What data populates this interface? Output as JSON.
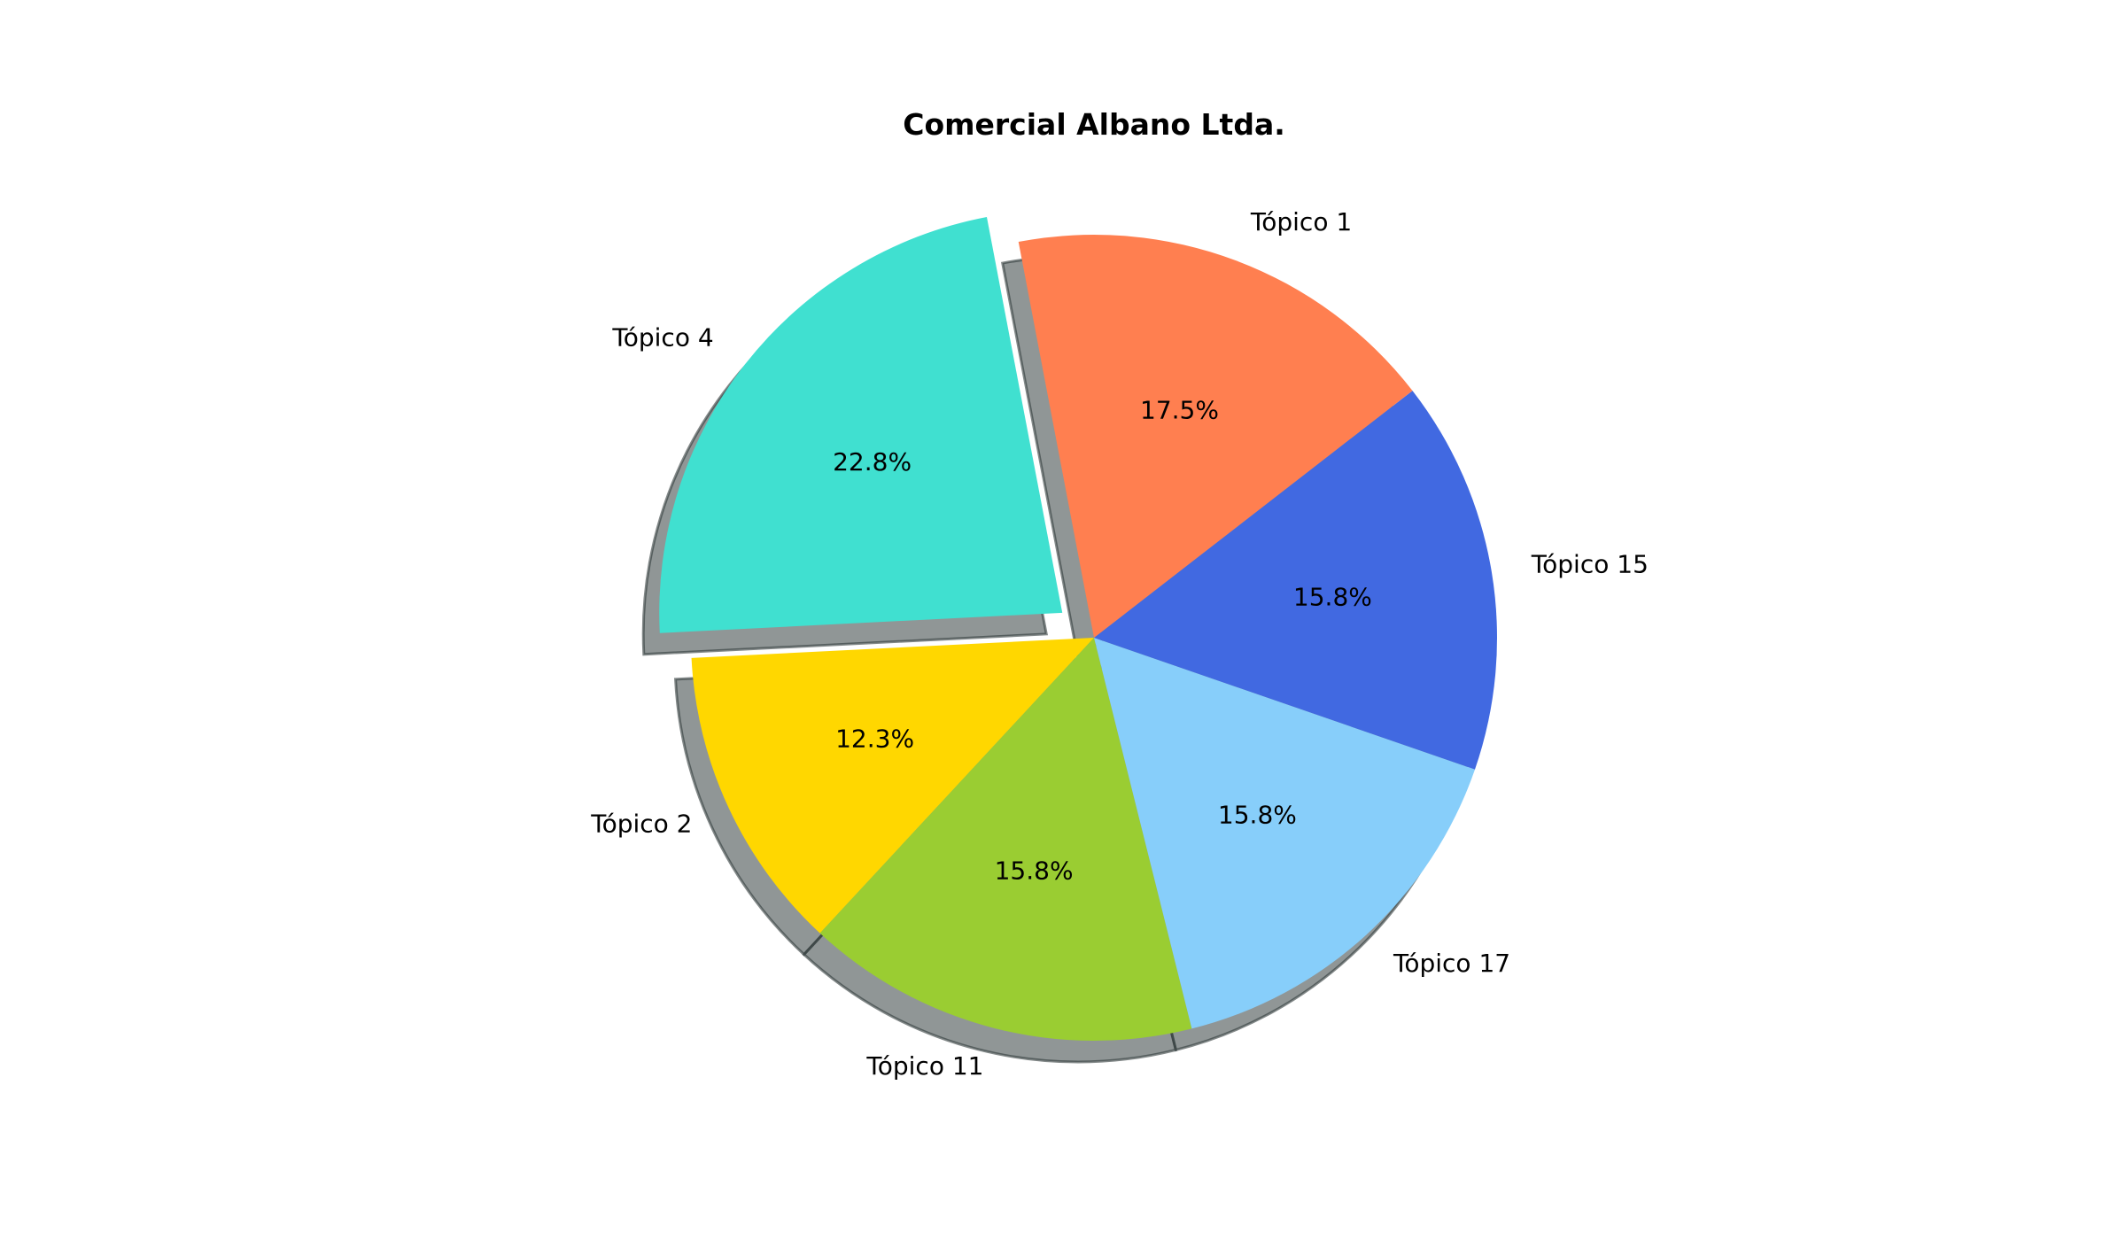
{
  "chart_data": {
    "type": "pie",
    "title": "Comercial Albano Ltda.",
    "slices": [
      {
        "label": "Tópico 4",
        "pct_label": "22.8%",
        "value": 22.8,
        "color": "#40E0D0",
        "explode": true
      },
      {
        "label": "Tópico 2",
        "pct_label": "12.3%",
        "value": 12.3,
        "color": "#FFD700",
        "explode": false
      },
      {
        "label": "Tópico 11",
        "pct_label": "15.8%",
        "value": 15.8,
        "color": "#9ACD32",
        "explode": false
      },
      {
        "label": "Tópico 17",
        "pct_label": "15.8%",
        "value": 15.8,
        "color": "#87CEFA",
        "explode": false
      },
      {
        "label": "Tópico 15",
        "pct_label": "15.8%",
        "value": 15.8,
        "color": "#4169E1",
        "explode": false
      },
      {
        "label": "Tópico 1",
        "pct_label": "17.5%",
        "value": 17.5,
        "color": "#FF7F50",
        "explode": false
      }
    ],
    "shadow": true,
    "legend": "none"
  }
}
